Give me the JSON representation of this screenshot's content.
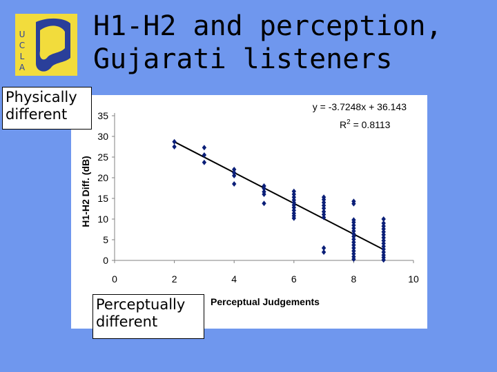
{
  "slide": {
    "title_line1": "H1-H2 and perception,",
    "title_line2": "Gujarati listeners",
    "logo_letters": [
      "U",
      "C",
      "L",
      "A"
    ]
  },
  "callouts": {
    "physical": [
      "Physically",
      "different"
    ],
    "perceptual": [
      "Perceptually",
      "different"
    ]
  },
  "colors": {
    "background": "#6f97ee",
    "marker": "#0b1f78",
    "logo_gold": "#f2dc3c",
    "logo_blue": "#2a3f9a"
  },
  "chart_data": {
    "type": "scatter",
    "xlabel": "Perceptual Judgements",
    "ylabel": "H1-H2 Diff. (dB)",
    "xlim": [
      0,
      10
    ],
    "ylim": [
      0,
      35
    ],
    "xticks": [
      0,
      2,
      4,
      6,
      8,
      10
    ],
    "yticks": [
      0,
      5,
      10,
      15,
      20,
      25,
      30,
      35
    ],
    "grid": false,
    "trendline": {
      "slope": -3.7248,
      "intercept": 36.143,
      "x_range": [
        2,
        9
      ]
    },
    "equation": "y = -3.7248x + 36.143",
    "r_squared_label": "R",
    "r_squared_sup": "2",
    "r_squared_value": " = 0.8113",
    "series": [
      {
        "points": [
          [
            2,
            28.7
          ],
          [
            2,
            27.5
          ],
          [
            3,
            27.3
          ],
          [
            3,
            25.5
          ],
          [
            3,
            23.7
          ],
          [
            4,
            22.0
          ],
          [
            4,
            21.2
          ],
          [
            4,
            20.5
          ],
          [
            4,
            18.5
          ],
          [
            5,
            18.0
          ],
          [
            5,
            17.4
          ],
          [
            5,
            16.6
          ],
          [
            5,
            16.0
          ],
          [
            5,
            13.8
          ],
          [
            6,
            16.7
          ],
          [
            6,
            16.0
          ],
          [
            6,
            15.3
          ],
          [
            6,
            14.6
          ],
          [
            6,
            14.0
          ],
          [
            6,
            13.4
          ],
          [
            6,
            12.8
          ],
          [
            6,
            12.1
          ],
          [
            6,
            11.4
          ],
          [
            6,
            10.8
          ],
          [
            6,
            10.2
          ],
          [
            7,
            15.3
          ],
          [
            7,
            14.7
          ],
          [
            7,
            14.0
          ],
          [
            7,
            13.3
          ],
          [
            7,
            12.6
          ],
          [
            7,
            11.8
          ],
          [
            7,
            11.1
          ],
          [
            7,
            10.4
          ],
          [
            7,
            3.0
          ],
          [
            7,
            2.0
          ],
          [
            8,
            14.3
          ],
          [
            8,
            13.7
          ],
          [
            8,
            9.8
          ],
          [
            8,
            9.2
          ],
          [
            8,
            8.5
          ],
          [
            8,
            7.8
          ],
          [
            8,
            7.1
          ],
          [
            8,
            6.4
          ],
          [
            8,
            5.8
          ],
          [
            8,
            5.1
          ],
          [
            8,
            4.4
          ],
          [
            8,
            3.7
          ],
          [
            8,
            3.0
          ],
          [
            8,
            2.3
          ],
          [
            8,
            1.6
          ],
          [
            8,
            0.9
          ],
          [
            8,
            0.3
          ],
          [
            9,
            10.0
          ],
          [
            9,
            9.0
          ],
          [
            9,
            8.3
          ],
          [
            9,
            7.6
          ],
          [
            9,
            6.9
          ],
          [
            9,
            6.2
          ],
          [
            9,
            5.5
          ],
          [
            9,
            4.8
          ],
          [
            9,
            4.1
          ],
          [
            9,
            3.4
          ],
          [
            9,
            2.7
          ],
          [
            9,
            2.0
          ],
          [
            9,
            1.3
          ],
          [
            9,
            0.7
          ],
          [
            9,
            0.1
          ]
        ]
      }
    ]
  }
}
